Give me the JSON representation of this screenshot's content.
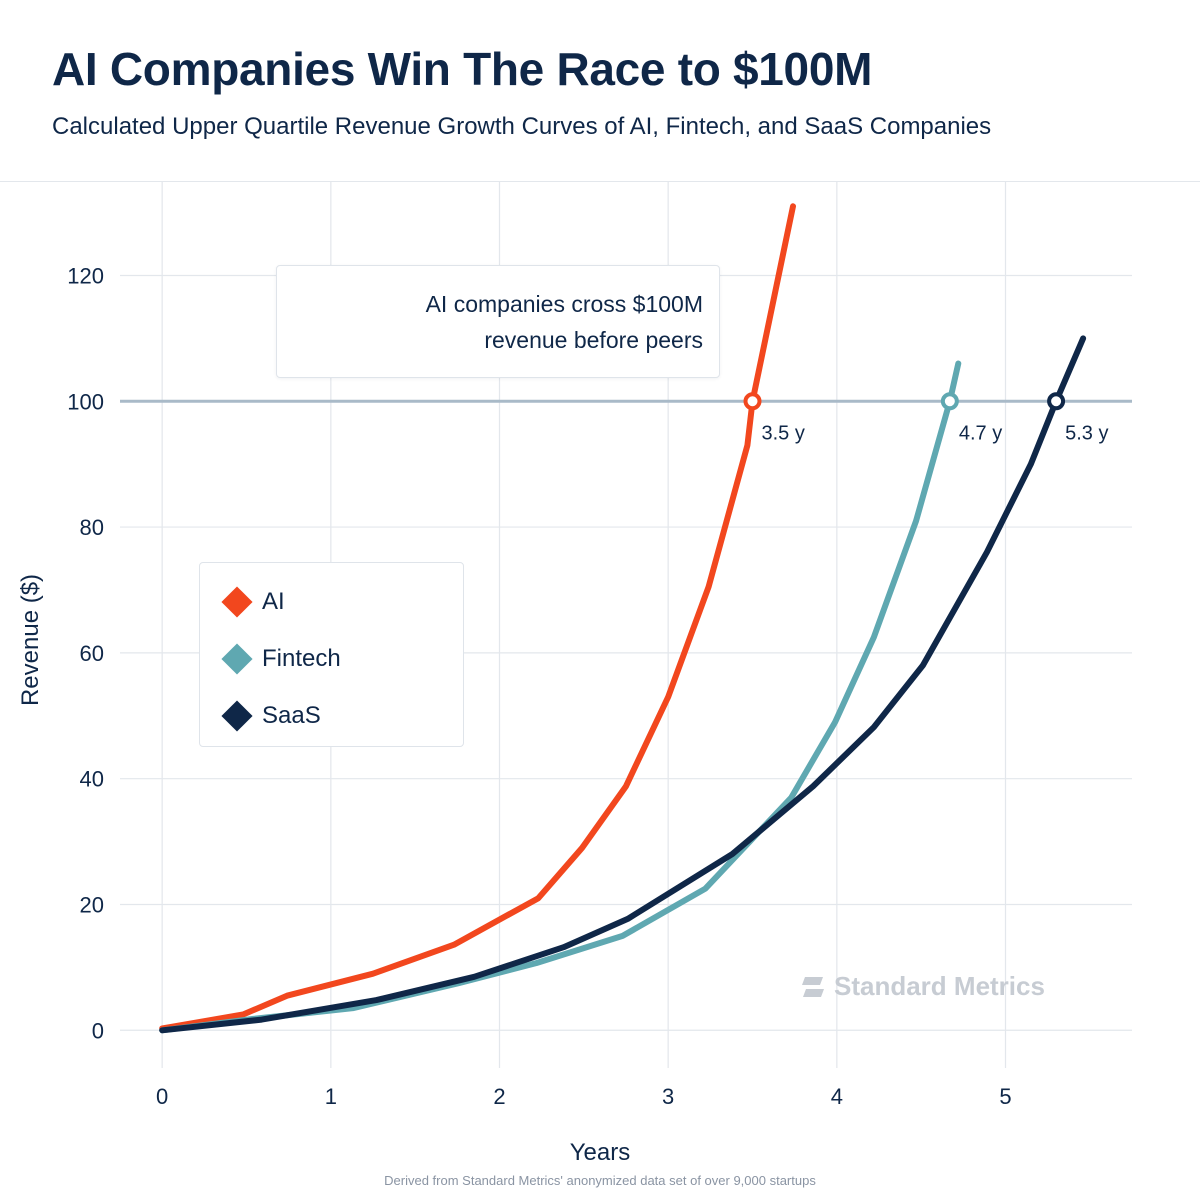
{
  "title": "AI Companies Win The Race to $100M",
  "subtitle": "Calculated Upper Quartile Revenue Growth Curves of AI, Fintech, and SaaS Companies",
  "annotation": {
    "line1": "AI companies cross $100M",
    "line2": "revenue before peers"
  },
  "watermark": "Standard Metrics",
  "footnote": "Derived from Standard Metrics' anonymized data set of over 9,000 startups",
  "colors": {
    "AI": "#f2471e",
    "Fintech": "#5fa8b1",
    "SaaS": "#0f2748",
    "threshold_line": "#a9bac8",
    "grid": "#e3e7ec"
  },
  "chart_data": {
    "type": "line",
    "title": "AI Companies Win The Race to $100M",
    "subtitle": "Calculated Upper Quartile Revenue Growth Curves of AI, Fintech, and SaaS Companies",
    "xlabel": "Years",
    "ylabel": "Revenue ($)",
    "xlim": [
      -0.25,
      5.75
    ],
    "ylim": [
      -6,
      132
    ],
    "xticks": [
      0,
      1,
      2,
      3,
      4,
      5
    ],
    "yticks": [
      0,
      20,
      40,
      60,
      80,
      100,
      120
    ],
    "grid": true,
    "legend_position": "middle-left",
    "threshold": {
      "y": 100
    },
    "series": [
      {
        "name": "AI",
        "x": [
          0,
          0.48,
          0.74,
          1.25,
          1.73,
          2.23,
          2.49,
          2.75,
          3.0,
          3.24,
          3.47,
          3.5,
          3.74
        ],
        "y": [
          0.3,
          2.5,
          5.5,
          9.0,
          13.6,
          21.0,
          29.0,
          38.8,
          53.0,
          70.5,
          93.0,
          100,
          131
        ]
      },
      {
        "name": "Fintech",
        "x": [
          0,
          0.54,
          1.13,
          1.76,
          2.22,
          2.73,
          3.22,
          3.73,
          3.99,
          4.22,
          4.47,
          4.67,
          4.72
        ],
        "y": [
          0,
          1.8,
          3.5,
          7.5,
          10.7,
          15.0,
          22.5,
          37.0,
          49.0,
          62.5,
          81.0,
          100,
          106
        ]
      },
      {
        "name": "SaaS",
        "x": [
          0,
          0.59,
          1.27,
          1.85,
          2.38,
          2.76,
          3.38,
          3.86,
          4.22,
          4.51,
          4.89,
          5.15,
          5.3,
          5.46
        ],
        "y": [
          0,
          1.7,
          4.8,
          8.5,
          13.2,
          17.7,
          28.0,
          38.8,
          48.2,
          58.0,
          76.0,
          90.0,
          100,
          110
        ]
      }
    ],
    "crossings": [
      {
        "series": "AI",
        "x": 3.5,
        "y": 100,
        "label": "3.5 y"
      },
      {
        "series": "Fintech",
        "x": 4.67,
        "y": 100,
        "label": "4.7 y"
      },
      {
        "series": "SaaS",
        "x": 5.3,
        "y": 100,
        "label": "5.3 y"
      }
    ]
  }
}
